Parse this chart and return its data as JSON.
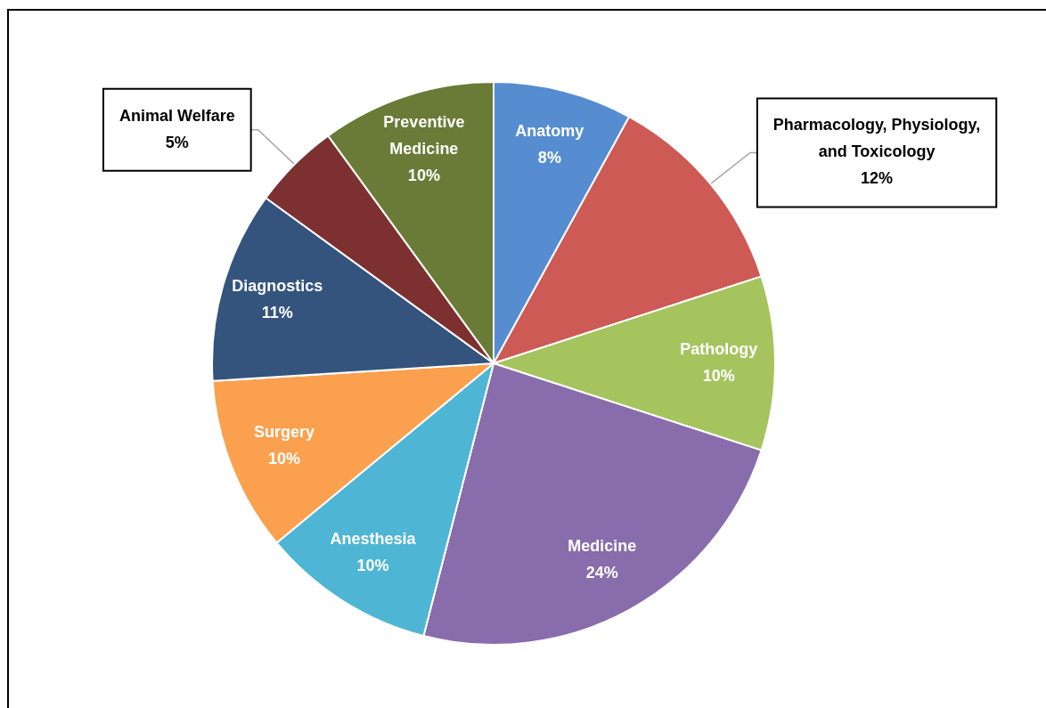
{
  "chart_data": {
    "type": "pie",
    "categories": [
      "Anatomy",
      "Pharmacology, Physiology, and Toxicology",
      "Pathology",
      "Medicine",
      "Anesthesia",
      "Surgery",
      "Diagnostics",
      "Animal Welfare",
      "Preventive Medicine"
    ],
    "values": [
      8,
      12,
      10,
      24,
      10,
      10,
      11,
      5,
      10
    ],
    "value_labels": [
      "8%",
      "12%",
      "10%",
      "24%",
      "10%",
      "10%",
      "11%",
      "5%",
      "10%"
    ],
    "colors": [
      "#568dd1",
      "#cd5a55",
      "#a5c45e",
      "#896cab",
      "#4fb5d4",
      "#fba04e",
      "#34547e",
      "#7d3030",
      "#697b36"
    ]
  }
}
